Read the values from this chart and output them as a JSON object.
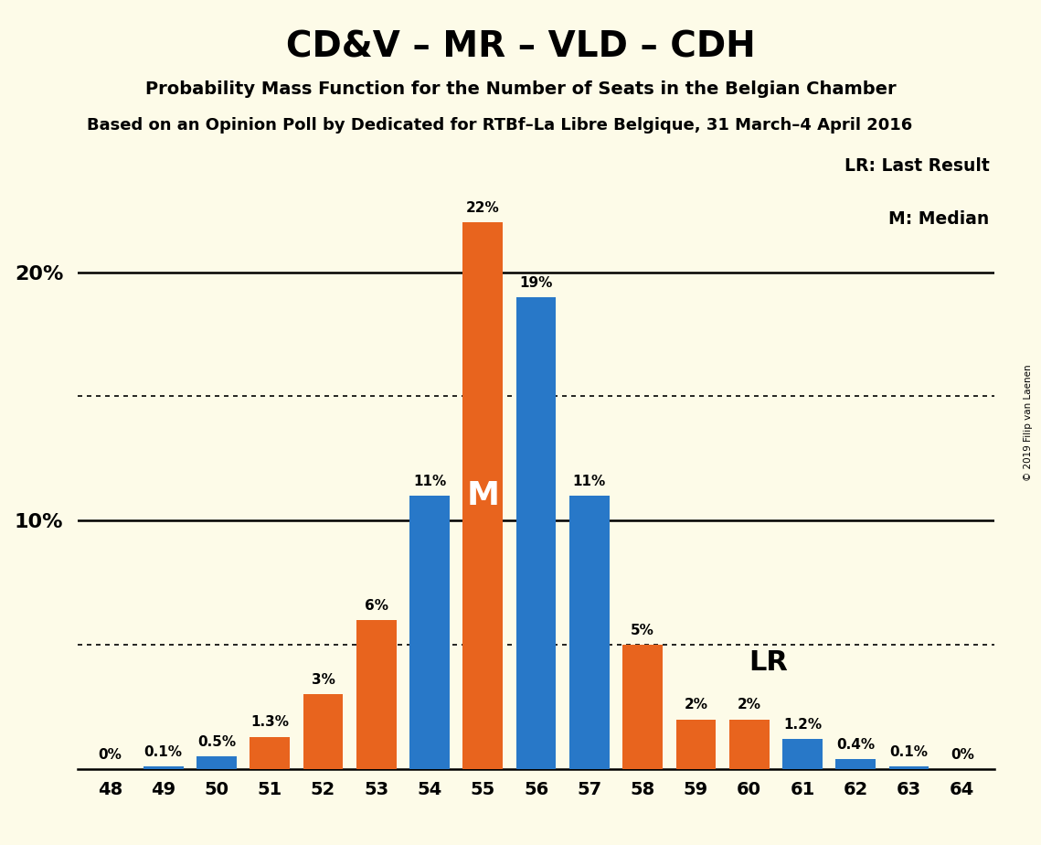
{
  "title": "CD&V – MR – VLD – CDH",
  "subtitle1": "Probability Mass Function for the Number of Seats in the Belgian Chamber",
  "subtitle2": "Based on an Opinion Poll by Dedicated for RTBf–La Libre Belgique, 31 March–4 April 2016",
  "copyright": "© 2019 Filip van Laenen",
  "seats": [
    48,
    49,
    50,
    51,
    52,
    53,
    54,
    55,
    56,
    57,
    58,
    59,
    60,
    61,
    62,
    63,
    64
  ],
  "values": [
    0.0,
    0.1,
    0.5,
    1.3,
    3.0,
    6.0,
    11.0,
    22.0,
    19.0,
    11.0,
    5.0,
    2.0,
    2.0,
    1.2,
    0.4,
    0.1,
    0.0
  ],
  "colors": [
    "#2878c8",
    "#2878c8",
    "#2878c8",
    "#e8641e",
    "#e8641e",
    "#e8641e",
    "#2878c8",
    "#e8641e",
    "#2878c8",
    "#2878c8",
    "#e8641e",
    "#e8641e",
    "#e8641e",
    "#2878c8",
    "#2878c8",
    "#2878c8",
    "#2878c8"
  ],
  "label_vals": [
    "0%",
    "0.1%",
    "0.5%",
    "1.3%",
    "3%",
    "6%",
    "11%",
    "22%",
    "19%",
    "11%",
    "5%",
    "2%",
    "2%",
    "1.2%",
    "0.4%",
    "0.1%",
    "0%"
  ],
  "background_color": "#fdfbe8",
  "ylim": [
    0,
    25
  ],
  "legend_lr": "LR: Last Result",
  "legend_m": "M: Median",
  "median_seat_idx": 7,
  "lr_seat_idx": 11,
  "solid_gridlines": [
    10.0,
    20.0
  ],
  "dotted_gridlines": [
    5.0,
    15.0
  ],
  "blue_color": "#2878c8",
  "orange_color": "#e8641e"
}
